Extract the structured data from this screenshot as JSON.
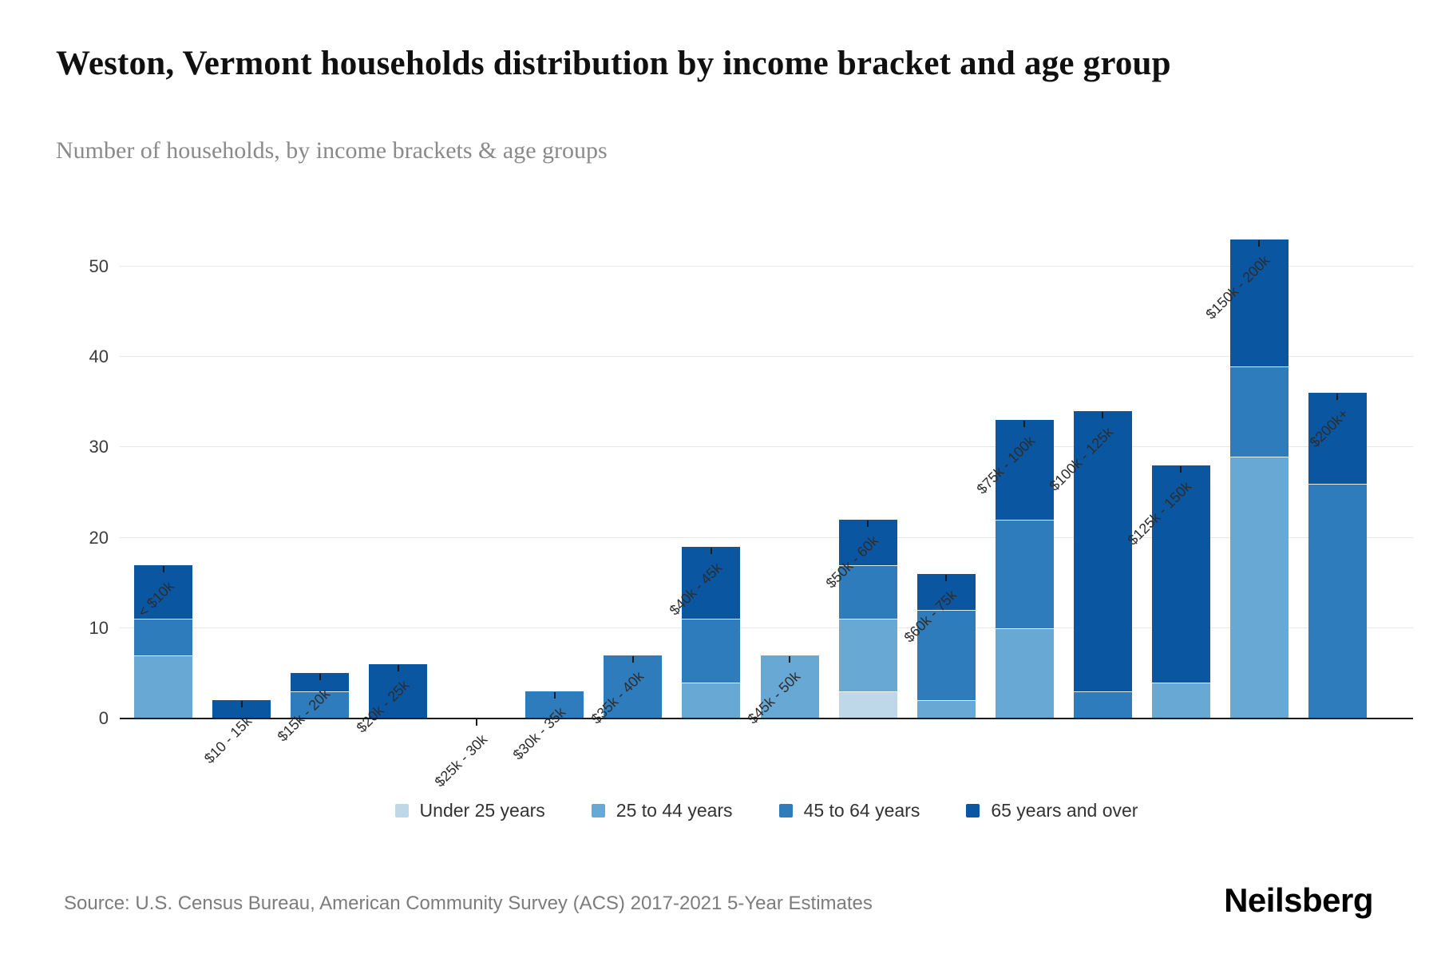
{
  "header": {
    "title": "Weston, Vermont households distribution by income bracket and age group",
    "subtitle": "Number of households, by income brackets & age groups"
  },
  "footer": {
    "source": "Source: U.S. Census Bureau, American Community Survey (ACS) 2017-2021 5-Year Estimates",
    "brand": "Neilsberg"
  },
  "chart_data": {
    "type": "bar",
    "stacked": true,
    "title": "Weston, Vermont households distribution by income bracket and age group",
    "xlabel": "",
    "ylabel": "Number of households",
    "grid": "horizontal",
    "legend_position": "bottom",
    "ylim": [
      0,
      55
    ],
    "yticks": [
      0,
      10,
      20,
      30,
      40,
      50
    ],
    "categories": [
      "< $10k",
      "$10 - 15k",
      "$15k - 20k",
      "$20k - 25k",
      "$25k - 30k",
      "$30k - 35k",
      "$35k - 40k",
      "$40k - 45k",
      "$45k - 50k",
      "$50k - 60k",
      "$60k - 75k",
      "$75k - 100k",
      "$100k - 125k",
      "$125k - 150k",
      "$150k - 200k",
      "$200k+"
    ],
    "series": [
      {
        "name": "Under 25 years",
        "color": "#bed7e9",
        "values": [
          0,
          0,
          0,
          0,
          0,
          0,
          0,
          0,
          0,
          3,
          0,
          0,
          0,
          0,
          0,
          0
        ]
      },
      {
        "name": "25 to 44 years",
        "color": "#67a9d4",
        "values": [
          7,
          0,
          0,
          0,
          0,
          0,
          0,
          4,
          7,
          8,
          2,
          10,
          0,
          4,
          29,
          0
        ]
      },
      {
        "name": "45 to 64 years",
        "color": "#2e7cbc",
        "values": [
          4,
          0,
          3,
          0,
          0,
          3,
          7,
          7,
          0,
          6,
          10,
          12,
          3,
          0,
          10,
          26
        ]
      },
      {
        "name": "65 years and over",
        "color": "#0b56a1",
        "values": [
          6,
          2,
          2,
          6,
          0,
          0,
          0,
          8,
          0,
          5,
          4,
          11,
          31,
          24,
          14,
          10
        ]
      }
    ],
    "totals": [
      17,
      2,
      5,
      6,
      0,
      3,
      7,
      19,
      7,
      22,
      16,
      33,
      34,
      28,
      53,
      36
    ]
  }
}
